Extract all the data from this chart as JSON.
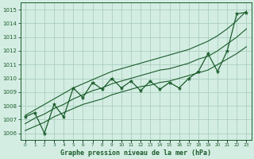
{
  "title": "Graphe pression niveau de la mer (hPa)",
  "bg_color": "#d4ede3",
  "grid_color": "#aacfbf",
  "line_color": "#1a5c2a",
  "ylim": [
    1005.5,
    1015.5
  ],
  "yticks": [
    1006,
    1007,
    1008,
    1009,
    1010,
    1011,
    1012,
    1013,
    1014,
    1015
  ],
  "x_labels": [
    "0",
    "1",
    "2",
    "3",
    "4",
    "5",
    "6",
    "7",
    "8",
    "9",
    "10",
    "11",
    "12",
    "13",
    "14",
    "15",
    "16",
    "17",
    "18",
    "19",
    "20",
    "21",
    "22",
    "23"
  ],
  "main_data": [
    1007.2,
    1007.5,
    1006.0,
    1008.1,
    1007.2,
    1009.3,
    1008.6,
    1009.7,
    1009.2,
    1010.0,
    1009.3,
    1009.8,
    1009.1,
    1009.8,
    1009.2,
    1009.7,
    1009.3,
    1010.0,
    1010.5,
    1011.8,
    1010.5,
    1012.0,
    1014.7,
    1014.8
  ],
  "upper_line": [
    1007.3,
    1007.7,
    1008.1,
    1008.5,
    1008.9,
    1009.3,
    1009.6,
    1009.9,
    1010.2,
    1010.5,
    1010.7,
    1010.9,
    1011.1,
    1011.3,
    1011.5,
    1011.7,
    1011.9,
    1012.1,
    1012.4,
    1012.7,
    1013.1,
    1013.6,
    1014.2,
    1014.9
  ],
  "lower_line": [
    1006.2,
    1006.5,
    1006.8,
    1007.2,
    1007.5,
    1007.8,
    1008.1,
    1008.3,
    1008.5,
    1008.8,
    1009.0,
    1009.2,
    1009.4,
    1009.5,
    1009.7,
    1009.8,
    1010.0,
    1010.2,
    1010.4,
    1010.6,
    1011.0,
    1011.4,
    1011.8,
    1012.3
  ],
  "mid_line": [
    1006.7,
    1007.1,
    1007.4,
    1007.8,
    1008.1,
    1008.5,
    1008.8,
    1009.1,
    1009.3,
    1009.6,
    1009.8,
    1010.0,
    1010.2,
    1010.4,
    1010.6,
    1010.7,
    1010.9,
    1011.1,
    1011.4,
    1011.6,
    1012.0,
    1012.5,
    1013.0,
    1013.6
  ]
}
